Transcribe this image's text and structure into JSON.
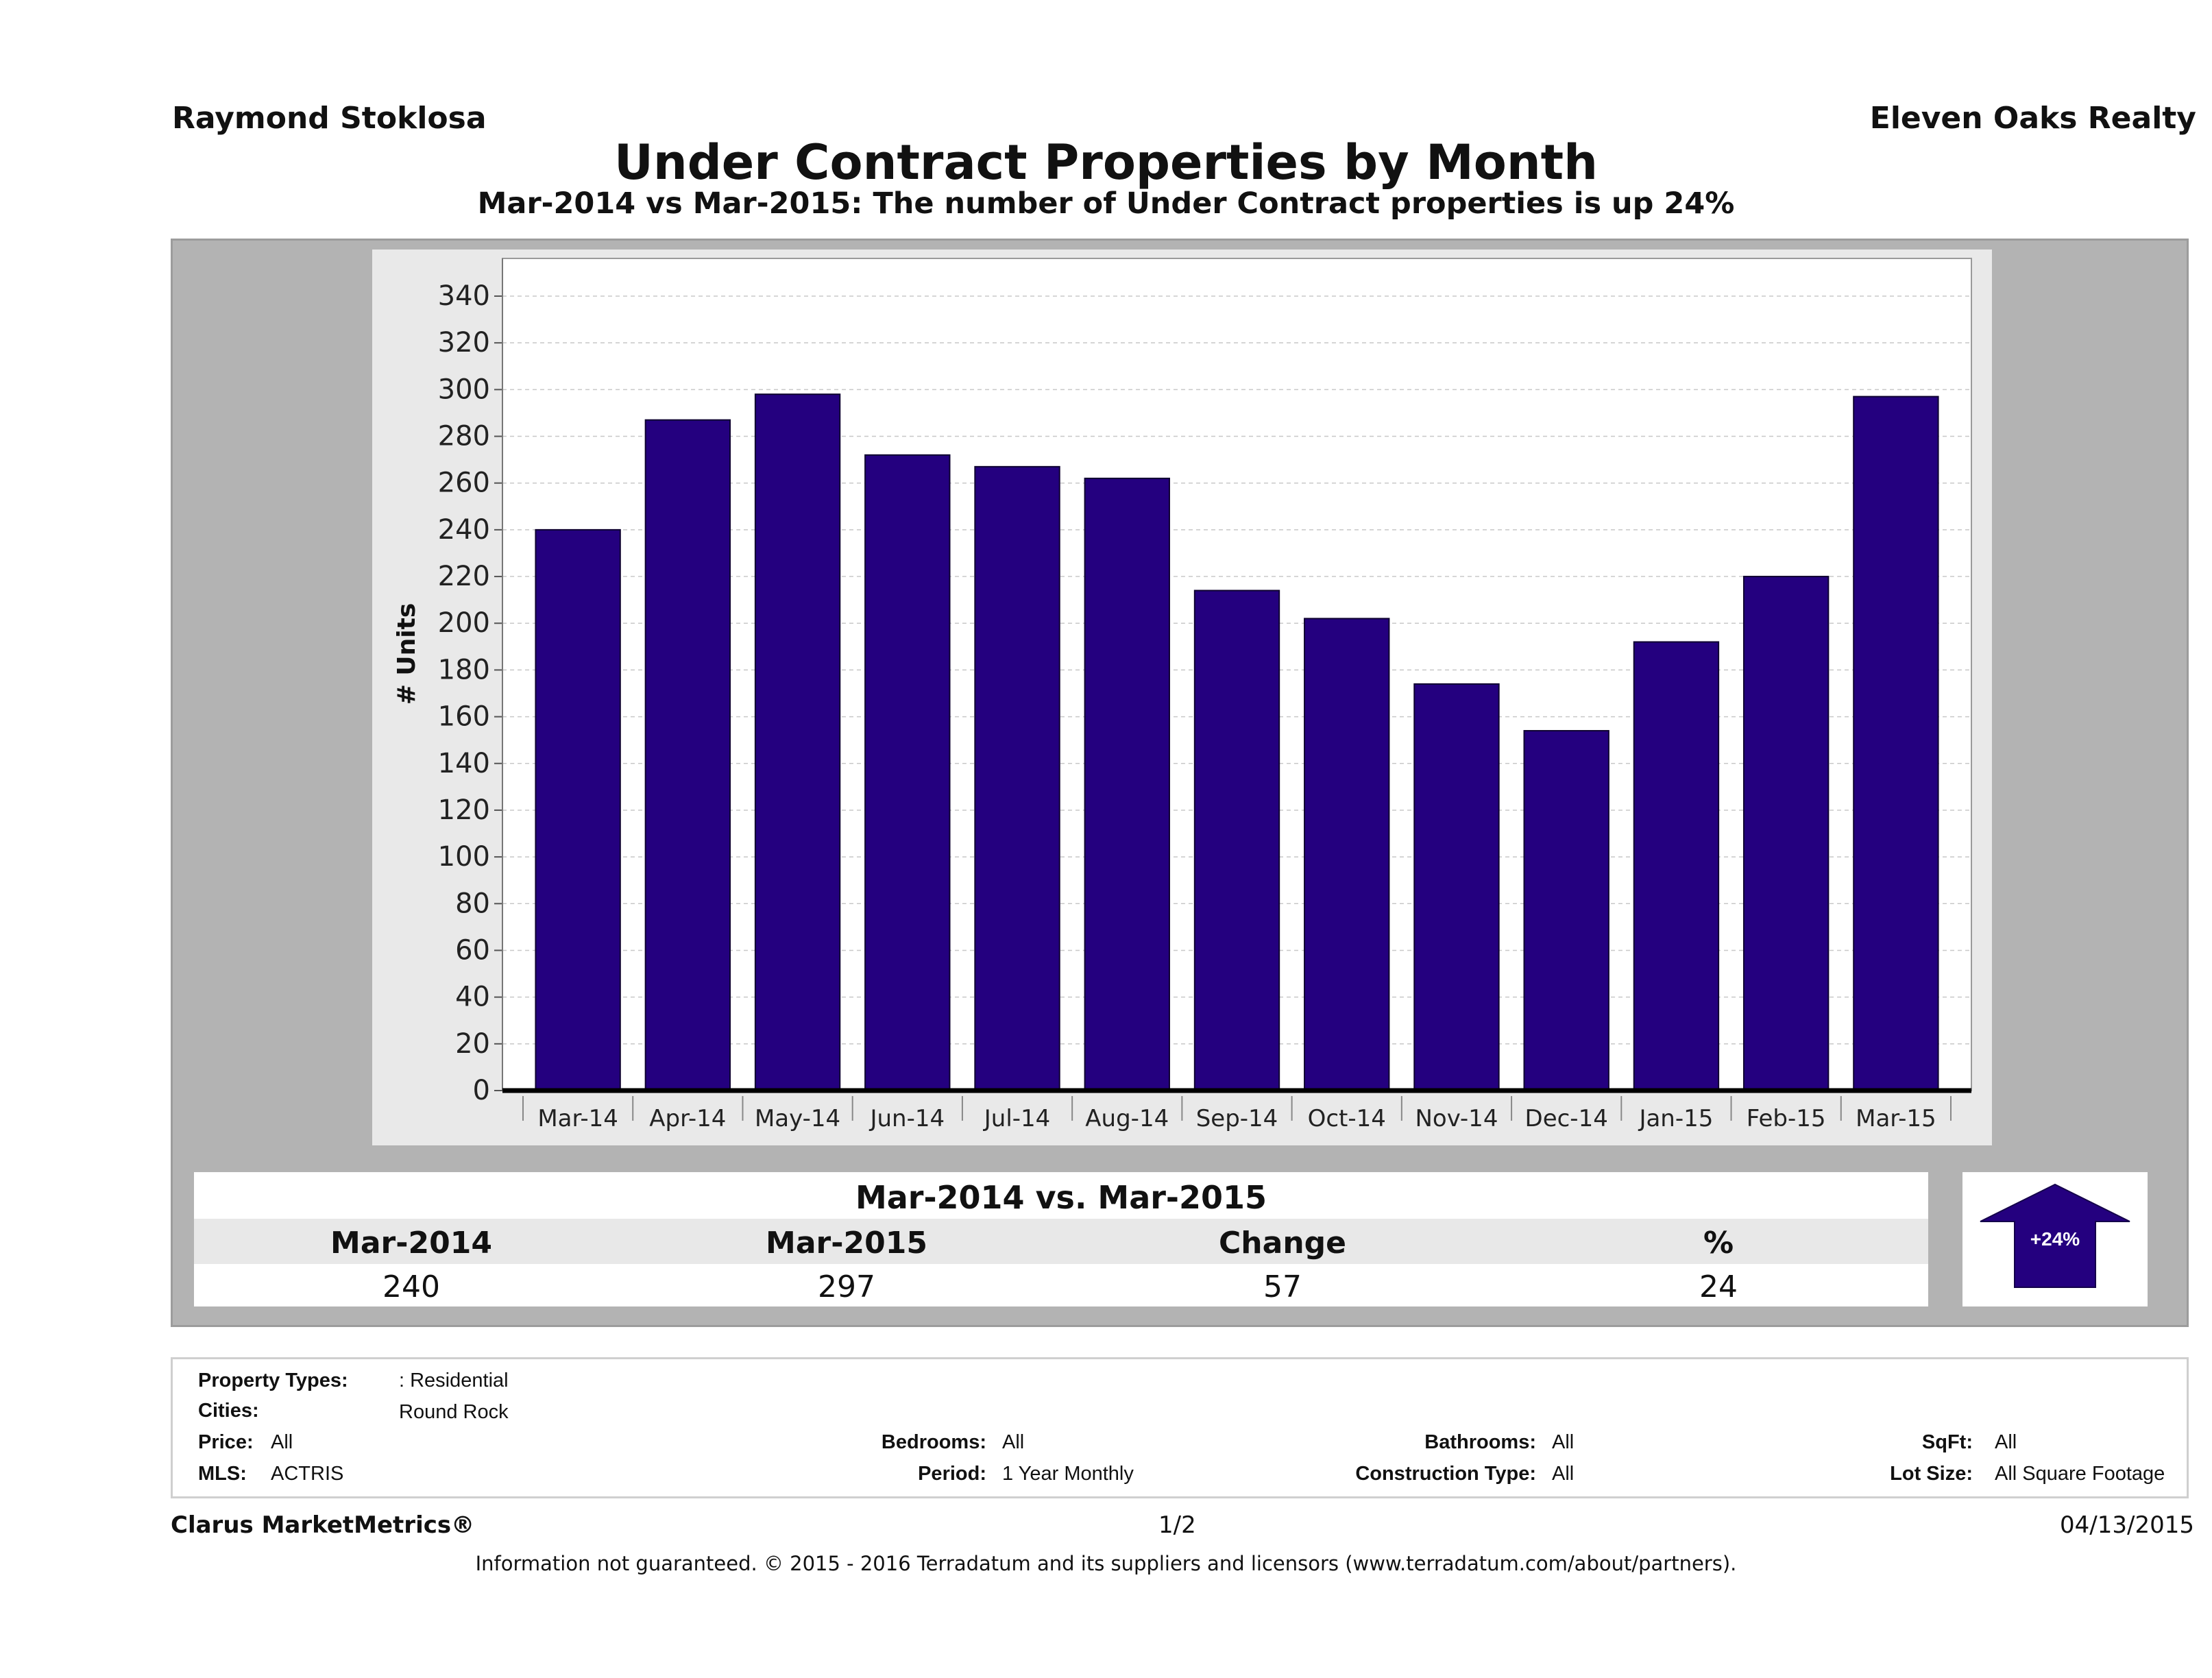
{
  "header": {
    "agent_name": "Raymond Stoklosa",
    "brokerage": "Eleven Oaks Realty"
  },
  "chart_data": {
    "type": "bar",
    "title": "Under Contract Properties by Month",
    "subtitle": "Mar-2014 vs Mar-2015: The number of Under Contract  properties is up 24%",
    "xlabel": "",
    "ylabel": "# Units",
    "ylim": [
      0,
      340
    ],
    "yticks": [
      0,
      20,
      40,
      60,
      80,
      100,
      120,
      140,
      160,
      180,
      200,
      220,
      240,
      260,
      280,
      300,
      320,
      340
    ],
    "grid": true,
    "categories": [
      "Mar-14",
      "Apr-14",
      "May-14",
      "Jun-14",
      "Jul-14",
      "Aug-14",
      "Sep-14",
      "Oct-14",
      "Nov-14",
      "Dec-14",
      "Jan-15",
      "Feb-15",
      "Mar-15"
    ],
    "values": [
      240,
      287,
      298,
      272,
      267,
      262,
      214,
      202,
      174,
      154,
      192,
      220,
      297
    ],
    "bar_color": "#24007f"
  },
  "summary": {
    "heading": "Mar-2014 vs. Mar-2015",
    "columns": [
      "Mar-2014",
      "Mar-2015",
      "Change",
      "%"
    ],
    "values": [
      "240",
      "297",
      "57",
      "24"
    ],
    "badge": "+24%",
    "badge_color": "#24007f"
  },
  "filters": {
    "property_types_label": "Property Types:",
    "property_types_value": ": Residential",
    "cities_label": "Cities:",
    "cities_value": "Round Rock",
    "price_label": "Price:",
    "price_value": "All",
    "bedrooms_label": "Bedrooms:",
    "bedrooms_value": "All",
    "bathrooms_label": "Bathrooms:",
    "bathrooms_value": "All",
    "sqft_label": "SqFt:",
    "sqft_value": "All",
    "mls_label": "MLS:",
    "mls_value": "ACTRIS",
    "period_label": "Period:",
    "period_value": "1 Year Monthly",
    "construction_label": "Construction Type:",
    "construction_value": "All",
    "lot_size_label": "Lot Size:",
    "lot_size_value": "All Square Footage"
  },
  "footer": {
    "product": "Clarus MarketMetrics®",
    "page": "1/2",
    "date": "04/13/2015",
    "disclaimer": "Information not guaranteed. © 2015 - 2016 Terradatum and its suppliers and licensors (www.terradatum.com/about/partners)."
  }
}
